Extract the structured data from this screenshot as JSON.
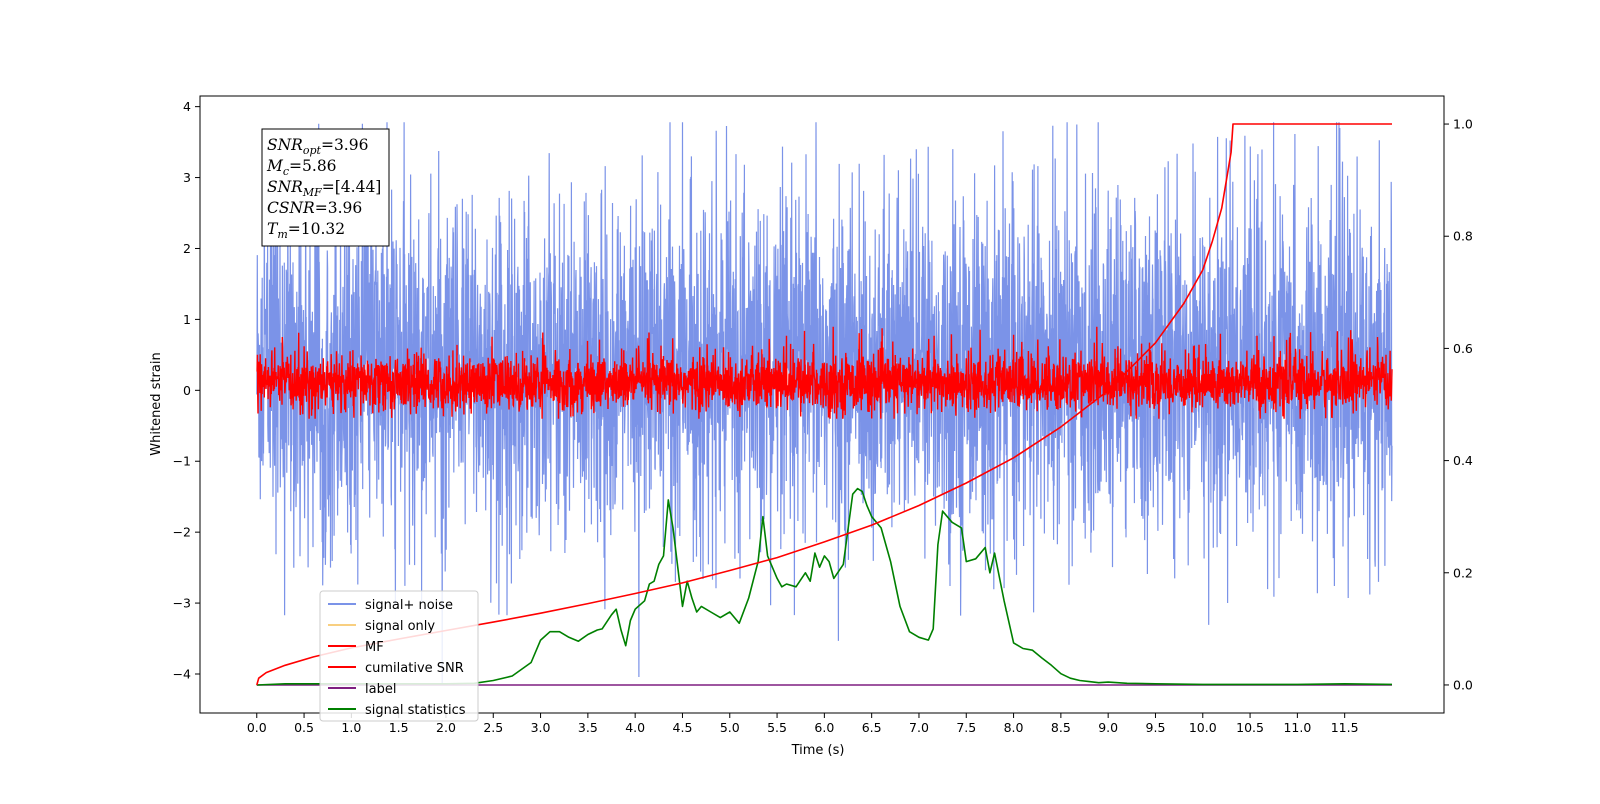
{
  "chart_data": {
    "type": "line",
    "title": "",
    "xlabel": "Time (s)",
    "ylabel": "Whitened strain",
    "y2label": "",
    "xlim": [
      -0.6,
      12.55
    ],
    "ylim": [
      -4.55,
      4.15
    ],
    "y2lim": [
      -0.05,
      1.05
    ],
    "x_ticks": [
      0.0,
      0.5,
      1.0,
      1.5,
      2.0,
      2.5,
      3.0,
      3.5,
      4.0,
      4.5,
      5.0,
      5.5,
      6.0,
      6.5,
      7.0,
      7.5,
      8.0,
      8.5,
      9.0,
      9.5,
      10.0,
      10.5,
      11.0,
      11.5
    ],
    "x_tick_labels": [
      "0.0",
      "0.5",
      "1.0",
      "1.5",
      "2.0",
      "2.5",
      "3.0",
      "3.5",
      "4.0",
      "4.5",
      "5.0",
      "5.5",
      "6.0",
      "6.5",
      "7.0",
      "7.5",
      "8.0",
      "8.5",
      "9.0",
      "9.5",
      "10.0",
      "10.5",
      "11.0",
      "11.5"
    ],
    "y_ticks": [
      4,
      3,
      2,
      1,
      0,
      -1,
      -2,
      -3,
      -4
    ],
    "y_tick_labels": [
      "4",
      "3",
      "2",
      "1",
      "0",
      "−1",
      "−2",
      "−3",
      "−4"
    ],
    "y2_ticks": [
      1.0,
      0.8,
      0.6,
      0.4,
      0.2,
      0.0
    ],
    "y2_tick_labels": [
      "1.0",
      "0.8",
      "0.6",
      "0.4",
      "0.2",
      "0.0"
    ],
    "grid": false,
    "legend_position": "lower-left",
    "annotation": {
      "snr_opt": "=3.96",
      "mc": "=5.86",
      "snr_mf": "=[4.44]",
      "csnr": "=3.96",
      "tm": "=10.32"
    },
    "series": [
      {
        "name": "signal+ noise",
        "color": "#7b93e8",
        "axis": "left",
        "description": "noise band",
        "x_range": [
          0.0,
          12.0
        ],
        "band": [
          -1.8,
          2.4
        ],
        "extremes": [
          -4.15,
          3.78
        ]
      },
      {
        "name": "signal only",
        "color": "#f8cf80",
        "axis": "left",
        "values_note": "near zero"
      },
      {
        "name": "MF",
        "color": "#ff0000",
        "axis": "left",
        "description": "matched filter output",
        "x_range": [
          0.0,
          12.0
        ],
        "band": [
          -0.35,
          0.55
        ],
        "extremes": [
          -0.4,
          0.95
        ]
      },
      {
        "name": "cumilative SNR",
        "color": "#ff0000",
        "axis": "right",
        "x": [
          0.0,
          0.02,
          0.1,
          0.3,
          0.6,
          1.0,
          1.5,
          2.0,
          2.5,
          3.0,
          3.5,
          4.0,
          4.5,
          5.0,
          5.5,
          6.0,
          6.5,
          7.0,
          7.5,
          8.0,
          8.5,
          9.0,
          9.5,
          9.8,
          10.0,
          10.1,
          10.2,
          10.3,
          10.32,
          12.0
        ],
        "y": [
          0.0,
          0.012,
          0.022,
          0.035,
          0.05,
          0.066,
          0.082,
          0.097,
          0.112,
          0.128,
          0.145,
          0.163,
          0.182,
          0.204,
          0.227,
          0.255,
          0.285,
          0.32,
          0.36,
          0.405,
          0.46,
          0.525,
          0.61,
          0.68,
          0.74,
          0.79,
          0.85,
          0.95,
          1.0,
          1.0
        ]
      },
      {
        "name": "label",
        "color": "#7e1e80",
        "axis": "right",
        "x": [
          0.0,
          12.0
        ],
        "y": [
          0.0,
          0.0
        ]
      },
      {
        "name": "signal statistics",
        "color": "#008000",
        "axis": "right",
        "x": [
          0.0,
          0.3,
          1.0,
          2.0,
          2.3,
          2.5,
          2.7,
          2.9,
          3.0,
          3.1,
          3.2,
          3.3,
          3.4,
          3.5,
          3.6,
          3.65,
          3.75,
          3.8,
          3.85,
          3.9,
          3.95,
          4.0,
          4.1,
          4.15,
          4.2,
          4.25,
          4.3,
          4.35,
          4.4,
          4.5,
          4.55,
          4.6,
          4.65,
          4.7,
          4.8,
          4.9,
          5.0,
          5.1,
          5.2,
          5.3,
          5.35,
          5.4,
          5.5,
          5.55,
          5.6,
          5.7,
          5.8,
          5.85,
          5.9,
          5.95,
          6.0,
          6.05,
          6.1,
          6.2,
          6.3,
          6.35,
          6.4,
          6.45,
          6.5,
          6.6,
          6.7,
          6.8,
          6.9,
          7.0,
          7.1,
          7.15,
          7.2,
          7.25,
          7.3,
          7.35,
          7.45,
          7.5,
          7.6,
          7.7,
          7.75,
          7.8,
          7.9,
          8.0,
          8.1,
          8.2,
          8.3,
          8.4,
          8.5,
          8.6,
          8.7,
          8.8,
          8.9,
          9.0,
          9.2,
          9.5,
          10.0,
          11.0,
          11.5,
          12.0
        ],
        "y": [
          0.0,
          0.002,
          0.002,
          0.002,
          0.003,
          0.008,
          0.016,
          0.04,
          0.08,
          0.095,
          0.095,
          0.085,
          0.078,
          0.09,
          0.098,
          0.1,
          0.125,
          0.135,
          0.098,
          0.07,
          0.115,
          0.135,
          0.15,
          0.18,
          0.185,
          0.215,
          0.23,
          0.33,
          0.28,
          0.14,
          0.185,
          0.155,
          0.13,
          0.14,
          0.13,
          0.12,
          0.13,
          0.11,
          0.155,
          0.22,
          0.3,
          0.23,
          0.19,
          0.175,
          0.18,
          0.175,
          0.2,
          0.185,
          0.235,
          0.21,
          0.23,
          0.22,
          0.19,
          0.215,
          0.34,
          0.35,
          0.345,
          0.32,
          0.3,
          0.28,
          0.22,
          0.14,
          0.095,
          0.085,
          0.08,
          0.1,
          0.25,
          0.31,
          0.3,
          0.29,
          0.28,
          0.22,
          0.225,
          0.245,
          0.2,
          0.235,
          0.15,
          0.075,
          0.065,
          0.062,
          0.048,
          0.035,
          0.02,
          0.012,
          0.008,
          0.006,
          0.004,
          0.005,
          0.003,
          0.002,
          0.001,
          0.001,
          0.002,
          0.001
        ]
      }
    ]
  }
}
